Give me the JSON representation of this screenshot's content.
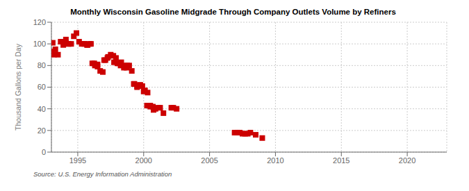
{
  "chart_data": {
    "type": "scatter",
    "title": "Monthly Wisconsin Gasoline Midgrade Through Company Outlets Volume by Refiners",
    "ylabel": "Thousand Gallons per Day",
    "annotations": [
      "Source: U.S. Energy Information Administration"
    ],
    "xlim": [
      1993.0,
      2023.0
    ],
    "ylim": [
      0,
      120
    ],
    "xticks": [
      1995,
      2000,
      2005,
      2010,
      2015,
      2020
    ],
    "yticks": [
      0,
      20,
      40,
      60,
      80,
      100,
      120
    ],
    "grid": true,
    "series": [
      {
        "color": "#cc0000",
        "marker": "square",
        "x": [
          1993.1,
          1993.3,
          1993.5,
          1993.7,
          1993.9,
          1994.1,
          1994.3,
          1994.5,
          1994.7,
          1994.9,
          1995.1,
          1995.3,
          1995.5,
          1995.7,
          1995.9,
          1996.1,
          1996.3,
          1996.5,
          1996.7,
          1996.9,
          1997.1,
          1997.3,
          1997.5,
          1997.7,
          1997.9,
          1998.1,
          1998.3,
          1998.5,
          1998.7,
          1998.9,
          1999.1,
          1999.3,
          1999.5,
          1999.7,
          1999.9,
          2000.1,
          2000.3,
          2000.5,
          2000.7,
          2000.9,
          2001.1,
          2001.5,
          2002.1,
          2002.5,
          2006.9,
          2007.1,
          2007.3,
          2007.5,
          2007.7,
          2007.9,
          2008.1,
          2008.5,
          2009.0
        ],
        "values": [
          101,
          95,
          90,
          102,
          99,
          104,
          100,
          100,
          107,
          110,
          102,
          100,
          100,
          99,
          100,
          82,
          80,
          79,
          75,
          74,
          85,
          88,
          90,
          89,
          87,
          82,
          83,
          80,
          78,
          80,
          75,
          63,
          60,
          62,
          61,
          57,
          55,
          43,
          42,
          40,
          41,
          36,
          41,
          40,
          18,
          18,
          18,
          17,
          17,
          17,
          18,
          16,
          13
        ]
      },
      {
        "color": "#cc0000",
        "marker": "square",
        "x": [
          1993.0,
          1993.2,
          1994.1,
          1994.3,
          1995.5,
          1995.75,
          1996.0,
          1996.25,
          1996.5,
          1997.0,
          1997.25,
          1997.75,
          1998.0,
          1998.25,
          1998.5,
          1998.75,
          1999.25,
          1999.5,
          1999.75,
          2000.0,
          2000.25,
          2000.5,
          2000.75,
          2001.25,
          2002.25
        ],
        "values": [
          93,
          90,
          101,
          100,
          100,
          99,
          100,
          82,
          81,
          85,
          87,
          83,
          82,
          80,
          78,
          80,
          63,
          61,
          62,
          56,
          43,
          42,
          39,
          41,
          41
        ]
      }
    ]
  }
}
